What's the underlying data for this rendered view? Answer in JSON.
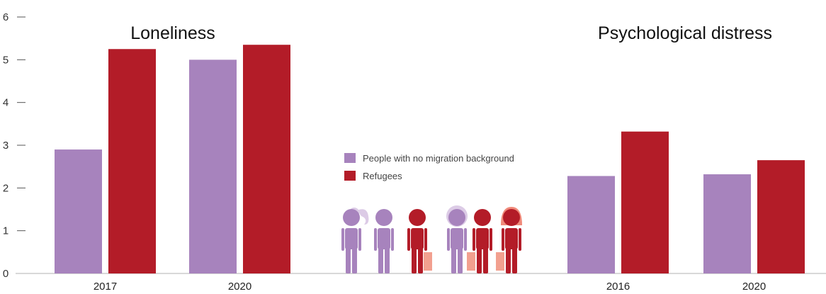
{
  "chart_data": {
    "type": "bar",
    "y_axis": {
      "ylim": [
        0,
        6
      ],
      "ticks": [
        "0",
        "1",
        "2",
        "3",
        "4",
        "5",
        "6"
      ]
    },
    "series": [
      {
        "name": "People with no migration background",
        "color": "#a783bd"
      },
      {
        "name": "Refugees",
        "color": "#b31c28"
      }
    ],
    "panels": [
      {
        "title": "Loneliness",
        "categories": [
          "2017",
          "2020"
        ],
        "values": [
          [
            2.9,
            5.25
          ],
          [
            5.0,
            5.35
          ]
        ]
      },
      {
        "title": "Psychological distress",
        "categories": [
          "2016",
          "2020"
        ],
        "values": [
          [
            2.28,
            3.32
          ],
          [
            2.32,
            2.65
          ]
        ]
      }
    ],
    "legend_placement": "center",
    "grid": false
  },
  "illustration": {
    "name": "people-figures-icon",
    "figures": [
      {
        "color": "#a783bd",
        "hair": "ponytail"
      },
      {
        "color": "#a783bd",
        "hair": "none"
      },
      {
        "color": "#b31c28",
        "hair": "none",
        "bag": true
      },
      {
        "color": "#a783bd",
        "hair": "curly"
      },
      {
        "color": "#b31c28",
        "hair": "none",
        "bag": true
      },
      {
        "color": "#b31c28",
        "hair": "bob",
        "bag": true
      }
    ],
    "hair_colors": {
      "#a783bd": "#dccbe6",
      "#b31c28": "#f08a7a"
    },
    "bag_color": "#f2a08f"
  }
}
